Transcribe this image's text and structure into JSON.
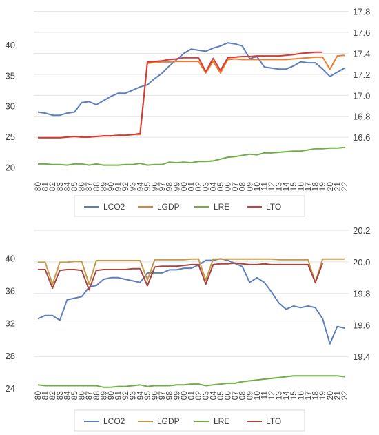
{
  "chart_data": [
    {
      "type": "line",
      "title": "",
      "x": [
        "80",
        "81",
        "82",
        "83",
        "84",
        "85",
        "86",
        "87",
        "88",
        "89",
        "90",
        "91",
        "92",
        "93",
        "94",
        "95",
        "96",
        "97",
        "98",
        "99",
        "00",
        "01",
        "02",
        "03",
        "04",
        "05",
        "06",
        "07",
        "08",
        "09",
        "10",
        "11",
        "12",
        "13",
        "14",
        "15",
        "16",
        "17",
        "18",
        "19",
        "20",
        "21",
        "22"
      ],
      "left_axis": {
        "ylim": [
          18,
          46
        ],
        "ticks": [
          20,
          25,
          30,
          35,
          40
        ]
      },
      "right_axis": {
        "ylim": [
          16.2,
          17.83
        ],
        "ticks": [
          16.6,
          16.8,
          17.0,
          17.2,
          17.4,
          17.6,
          17.8
        ]
      },
      "grid": "horizontal",
      "legend_position": "bottom",
      "series": [
        {
          "name": "LCO2",
          "axis": "right",
          "color": "#5b7fbe",
          "values": [
            16.84,
            16.83,
            16.81,
            16.81,
            16.83,
            16.84,
            16.93,
            16.94,
            16.91,
            16.95,
            16.99,
            17.02,
            17.02,
            17.05,
            17.08,
            17.1,
            17.16,
            17.21,
            17.28,
            17.34,
            17.4,
            17.44,
            17.43,
            17.42,
            17.45,
            17.47,
            17.5,
            17.49,
            17.47,
            17.35,
            17.37,
            17.27,
            17.26,
            17.25,
            17.25,
            17.28,
            17.32,
            17.31,
            17.31,
            17.25,
            17.18,
            17.22,
            17.26
          ]
        },
        {
          "name": "LGDP",
          "axis": "left",
          "color": "#ed7d31",
          "values": [
            24.8,
            24.8,
            24.8,
            24.8,
            24.9,
            25.0,
            24.9,
            24.9,
            25.0,
            25.1,
            25.1,
            25.2,
            25.2,
            25.3,
            25.3,
            37.0,
            37.1,
            37.2,
            37.2,
            37.3,
            37.3,
            37.3,
            37.3,
            35.4,
            37.3,
            35.4,
            37.6,
            37.7,
            37.6,
            37.6,
            37.6,
            37.6,
            37.6,
            37.6,
            37.6,
            37.7,
            37.8,
            37.9,
            38.0,
            38.0,
            36.0,
            38.2,
            38.3
          ]
        },
        {
          "name": "LRE",
          "axis": "left",
          "color": "#70ad47",
          "values": [
            20.5,
            20.5,
            20.4,
            20.4,
            20.3,
            20.5,
            20.5,
            20.3,
            20.5,
            20.3,
            20.3,
            20.3,
            20.4,
            20.4,
            20.6,
            20.3,
            20.4,
            20.4,
            20.8,
            20.7,
            20.8,
            20.7,
            20.9,
            20.9,
            21.0,
            21.3,
            21.6,
            21.7,
            21.9,
            22.1,
            22.0,
            22.3,
            22.3,
            22.4,
            22.5,
            22.6,
            22.6,
            22.8,
            23.0,
            23.0,
            23.1,
            23.1,
            23.2
          ]
        },
        {
          "name": "LTO",
          "axis": "left",
          "color": "#d23b36",
          "values": [
            24.8,
            24.8,
            24.8,
            24.8,
            24.9,
            25.0,
            24.9,
            24.9,
            25.0,
            25.1,
            25.1,
            25.2,
            25.2,
            25.3,
            25.5,
            37.2,
            37.3,
            37.4,
            37.6,
            37.7,
            37.9,
            37.9,
            37.9,
            35.6,
            37.8,
            35.8,
            37.9,
            38.0,
            38.1,
            38.1,
            38.2,
            38.2,
            38.2,
            38.2,
            38.3,
            38.4,
            38.6,
            38.7,
            38.8,
            38.8,
            null,
            null,
            null
          ]
        }
      ]
    },
    {
      "type": "line",
      "title": "",
      "x": [
        "80",
        "81",
        "82",
        "83",
        "84",
        "85",
        "86",
        "87",
        "88",
        "89",
        "90",
        "91",
        "92",
        "93",
        "94",
        "95",
        "96",
        "97",
        "98",
        "99",
        "00",
        "01",
        "02",
        "03",
        "04",
        "05",
        "06",
        "07",
        "08",
        "09",
        "10",
        "11",
        "12",
        "13",
        "14",
        "15",
        "16",
        "17",
        "18",
        "19",
        "20",
        "21",
        "22"
      ],
      "left_axis": {
        "ylim": [
          24,
          44.2
        ],
        "ticks": [
          24,
          28,
          32,
          36,
          40
        ]
      },
      "right_axis": {
        "ylim": [
          19.2,
          20.24
        ],
        "ticks": [
          19.4,
          19.6,
          19.8,
          20.0,
          20.2
        ]
      },
      "grid": "horizontal",
      "legend_position": "bottom",
      "series": [
        {
          "name": "LCO2",
          "axis": "right",
          "color": "#5b7fbe",
          "values": [
            19.64,
            19.66,
            19.66,
            19.63,
            19.76,
            19.77,
            19.78,
            19.84,
            19.85,
            19.89,
            19.9,
            19.9,
            19.89,
            19.88,
            19.87,
            19.93,
            19.93,
            19.93,
            19.95,
            19.95,
            19.96,
            19.96,
            19.98,
            20.01,
            20.01,
            20.02,
            20.01,
            19.99,
            19.97,
            19.87,
            19.9,
            19.87,
            19.81,
            19.74,
            19.7,
            19.72,
            19.71,
            19.72,
            19.71,
            19.64,
            19.48,
            19.59,
            19.58
          ]
        },
        {
          "name": "LGDP",
          "axis": "left",
          "color": "#c49a4c",
          "values": [
            39.5,
            39.5,
            36.8,
            39.5,
            39.5,
            39.6,
            39.6,
            36.8,
            39.7,
            39.7,
            39.7,
            39.7,
            39.7,
            39.7,
            39.7,
            37.3,
            39.8,
            39.8,
            39.8,
            39.8,
            39.8,
            39.9,
            39.9,
            37.3,
            39.9,
            39.9,
            39.9,
            39.9,
            39.9,
            39.9,
            39.9,
            39.9,
            39.9,
            39.8,
            39.8,
            39.8,
            39.8,
            39.8,
            37.0,
            39.9,
            39.9,
            39.9,
            39.9
          ]
        },
        {
          "name": "LRE",
          "axis": "left",
          "color": "#70ad47",
          "values": [
            24.4,
            24.3,
            24.3,
            24.3,
            24.3,
            24.3,
            24.3,
            24.3,
            24.3,
            24.1,
            24.1,
            24.2,
            24.2,
            24.3,
            24.4,
            24.2,
            24.3,
            24.3,
            24.3,
            24.4,
            24.4,
            24.5,
            24.5,
            24.3,
            24.4,
            24.5,
            24.6,
            24.6,
            24.8,
            24.9,
            25.0,
            25.1,
            25.2,
            25.3,
            25.4,
            25.5,
            25.5,
            25.5,
            25.5,
            25.5,
            25.5,
            25.5,
            25.4
          ]
        },
        {
          "name": "LTO",
          "axis": "left",
          "color": "#a9443f",
          "values": [
            38.6,
            38.6,
            36.3,
            38.5,
            38.6,
            38.6,
            38.5,
            36.1,
            38.5,
            38.6,
            38.6,
            38.6,
            38.6,
            38.7,
            38.7,
            36.6,
            38.9,
            39.0,
            39.0,
            39.0,
            39.1,
            39.2,
            39.2,
            36.8,
            39.2,
            39.3,
            39.3,
            39.4,
            39.3,
            39.2,
            39.2,
            39.3,
            39.2,
            39.2,
            39.2,
            39.2,
            39.2,
            39.2,
            37.0,
            39.4,
            null,
            null,
            null
          ]
        }
      ]
    }
  ]
}
